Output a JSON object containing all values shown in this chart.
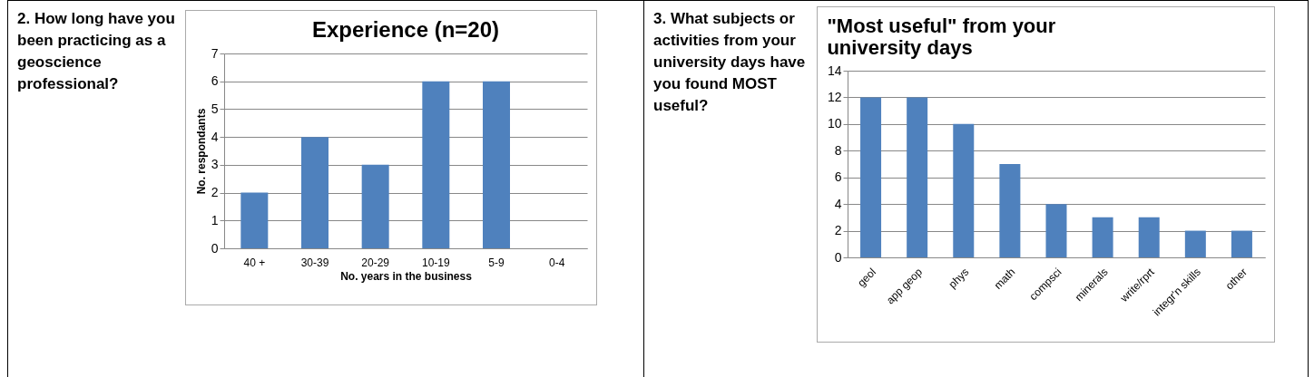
{
  "chart_data": [
    {
      "type": "bar",
      "title": "Experience (n=20)",
      "xlabel": "No. years in the business",
      "ylabel": "No. respondants",
      "annotations": [
        "2. How long have you been practicing as a geoscience professional?"
      ],
      "categories": [
        "40 +",
        "30-39",
        "20-29",
        "10-19",
        "5-9",
        "0-4"
      ],
      "values": [
        2,
        4,
        3,
        6,
        6,
        0
      ],
      "color": "#4f81bd",
      "ylim": [
        0,
        7
      ],
      "yticks": [
        0,
        1,
        2,
        3,
        4,
        5,
        6,
        7
      ],
      "grid": "y"
    },
    {
      "type": "bar",
      "title": [
        "\"Most useful\" from your",
        "university days"
      ],
      "annotations": [
        "3. What subjects or activities from your university days have you found MOST useful?"
      ],
      "categories": [
        "geol",
        "app geop",
        "phys",
        "math",
        "compsci",
        "minerals",
        "write/rprt",
        "integr'n skills",
        "other"
      ],
      "values": [
        12,
        12,
        10,
        7,
        4,
        3,
        3,
        2,
        2
      ],
      "color": "#4f81bd",
      "ylim": [
        0,
        14
      ],
      "yticks": [
        0,
        2,
        4,
        6,
        8,
        10,
        12,
        14
      ],
      "grid": "y"
    }
  ]
}
